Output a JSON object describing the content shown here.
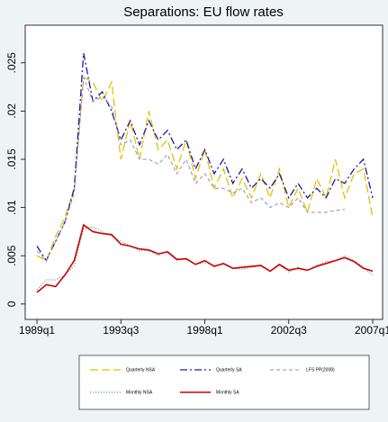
{
  "chart_data": {
    "type": "line",
    "title": "Separations: EU flow rates",
    "x": [
      1989,
      1989.5,
      1990,
      1990.5,
      1991,
      1991.5,
      1992,
      1992.5,
      1993,
      1993.5,
      1994,
      1994.5,
      1995,
      1995.5,
      1996,
      1996.5,
      1997,
      1997.5,
      1998,
      1998.5,
      1999,
      1999.5,
      2000,
      2000.5,
      2001,
      2001.5,
      2002,
      2002.5,
      2003,
      2003.5,
      2004,
      2004.5,
      2005,
      2005.5,
      2006,
      2006.5,
      2007
    ],
    "series": [
      {
        "name": "Quarterly NSA",
        "color": "#e8c000",
        "style": "longdash",
        "values": [
          0.005,
          0.0045,
          0.007,
          0.009,
          0.012,
          0.0235,
          0.023,
          0.021,
          0.023,
          0.015,
          0.019,
          0.015,
          0.02,
          0.016,
          0.017,
          0.014,
          0.017,
          0.013,
          0.016,
          0.012,
          0.014,
          0.011,
          0.013,
          0.011,
          0.0135,
          0.011,
          0.014,
          0.01,
          0.012,
          0.0095,
          0.013,
          0.011,
          0.015,
          0.011,
          0.0135,
          0.014,
          0.009
        ]
      },
      {
        "name": "Quarterly SA",
        "color": "#1a1aa0",
        "style": "dashdot",
        "values": [
          0.006,
          0.0045,
          0.0065,
          0.0085,
          0.012,
          0.026,
          0.021,
          0.022,
          0.02,
          0.017,
          0.019,
          0.0165,
          0.019,
          0.017,
          0.018,
          0.016,
          0.017,
          0.014,
          0.016,
          0.0135,
          0.015,
          0.0125,
          0.014,
          0.012,
          0.013,
          0.012,
          0.0135,
          0.011,
          0.0125,
          0.011,
          0.012,
          0.011,
          0.013,
          0.0125,
          0.014,
          0.015,
          0.011
        ]
      },
      {
        "name": "LFS PP(2008)",
        "color": "#8c8cc4",
        "style": "dashed",
        "values": [
          0.0055,
          0.0045,
          0.0065,
          0.0085,
          0.0115,
          0.0235,
          0.021,
          0.0215,
          0.0205,
          0.0165,
          0.017,
          0.015,
          0.015,
          0.0145,
          0.0155,
          0.0135,
          0.015,
          0.0125,
          0.0135,
          0.012,
          0.012,
          0.0115,
          0.012,
          0.0105,
          0.011,
          0.01,
          0.0105,
          0.01,
          0.011,
          0.0095,
          0.0095,
          0.0095,
          0.0097,
          0.0098,
          null,
          null,
          null
        ]
      },
      {
        "name": "Monthly NSA",
        "color": "#3a7a6a",
        "style": "dotted",
        "values": [
          0.0015,
          0.0025,
          0.0025,
          0.003,
          0.004,
          0.0078,
          0.008,
          0.0075,
          0.007,
          0.0065,
          0.006,
          0.0055,
          0.0055,
          0.005,
          0.0055,
          0.0047,
          0.0046,
          0.0041,
          0.0043,
          0.004,
          0.0041,
          0.0037,
          0.0036,
          0.0038,
          0.0039,
          0.0034,
          0.004,
          0.0033,
          0.0038,
          0.0035,
          0.004,
          0.0044,
          0.0045,
          0.005,
          0.0045,
          0.0038,
          0.003
        ]
      },
      {
        "name": "Monthly SA",
        "color": "#d00000",
        "style": "solid",
        "values": [
          0.0012,
          0.002,
          0.0018,
          0.003,
          0.0045,
          0.0082,
          0.0075,
          0.0073,
          0.0072,
          0.0062,
          0.006,
          0.0057,
          0.0056,
          0.0052,
          0.0054,
          0.0046,
          0.0047,
          0.0041,
          0.0045,
          0.0039,
          0.0042,
          0.0037,
          0.0038,
          0.0039,
          0.004,
          0.0034,
          0.0041,
          0.0035,
          0.0037,
          0.0035,
          0.0039,
          0.0042,
          0.0045,
          0.0048,
          0.0044,
          0.0037,
          0.0034
        ]
      }
    ],
    "xlim": [
      1988.37,
      2007.53
    ],
    "xticks": [
      {
        "value": 1989,
        "label": "1989q1"
      },
      {
        "value": 1993.5,
        "label": "1993q3"
      },
      {
        "value": 1998,
        "label": "1998q1"
      },
      {
        "value": 2002.5,
        "label": "2002q3"
      },
      {
        "value": 2007,
        "label": "2007q1"
      }
    ],
    "ylim": [
      -0.0016,
      0.0289
    ],
    "yticks": [
      0,
      {
        "value": 0.005,
        "label": ".005"
      },
      {
        "value": 0.01,
        "label": ".01"
      },
      {
        "value": 0.015,
        "label": ".015"
      },
      {
        "value": 0.02,
        "label": ".02"
      },
      {
        "value": 0.025,
        "label": ".025"
      }
    ],
    "grid": false
  }
}
